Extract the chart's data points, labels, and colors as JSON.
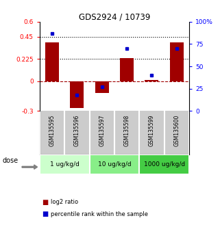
{
  "title": "GDS2924 / 10739",
  "samples": [
    "GSM135595",
    "GSM135596",
    "GSM135597",
    "GSM135598",
    "GSM135599",
    "GSM135600"
  ],
  "log2_ratio": [
    0.39,
    -0.27,
    -0.12,
    0.23,
    0.01,
    0.39
  ],
  "percentile_rank": [
    87,
    18,
    27,
    70,
    40,
    70
  ],
  "bar_color": "#a00000",
  "dot_color": "#0000cc",
  "left_ylim": [
    -0.3,
    0.6
  ],
  "right_ylim": [
    0,
    100
  ],
  "left_yticks": [
    -0.3,
    0,
    0.225,
    0.45,
    0.6
  ],
  "left_yticklabels": [
    "-0.3",
    "0",
    "0.225",
    "0.45",
    "0.6"
  ],
  "right_yticks": [
    0,
    25,
    50,
    75,
    100
  ],
  "right_yticklabels": [
    "0",
    "25",
    "50",
    "75",
    "100%"
  ],
  "hlines": [
    0.225,
    0.45
  ],
  "zero_line": 0,
  "dose_groups": [
    {
      "label": "1 ug/kg/d",
      "indices": [
        0,
        1
      ],
      "color": "#ccffcc"
    },
    {
      "label": "10 ug/kg/d",
      "indices": [
        2,
        3
      ],
      "color": "#88ee88"
    },
    {
      "label": "1000 ug/kg/d",
      "indices": [
        4,
        5
      ],
      "color": "#44cc44"
    }
  ],
  "legend_red_label": "log2 ratio",
  "legend_blue_label": "percentile rank within the sample",
  "dose_label": "dose",
  "background_color": "#ffffff",
  "plot_bg_color": "#ffffff",
  "sample_box_color": "#cccccc",
  "bar_width": 0.55
}
